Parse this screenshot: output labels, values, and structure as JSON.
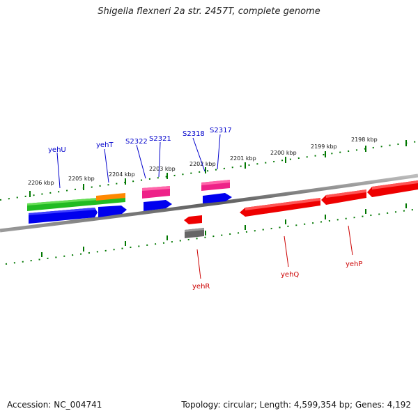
{
  "title": "Shigella flexneri 2a str. 2457T, complete genome",
  "footer": {
    "accession": "Accession: NC_004741",
    "summary": "Topology: circular; Length: 4,599,354 bp; Genes: 4,192"
  },
  "ticks": [
    "2206 kbp",
    "2205 kbp",
    "2204 kbp",
    "2203 kbp",
    "2202 kbp",
    "2201 kbp",
    "2200 kbp",
    "2199 kbp",
    "2198 kbp"
  ],
  "genes_forward": [
    "yehU",
    "yehT",
    "S2322",
    "S2321",
    "S2318",
    "S2317"
  ],
  "genes_reverse": [
    "yehR",
    "yehQ",
    "yehP"
  ],
  "colors": {
    "forward_label": "#0000cc",
    "reverse_label": "#cc0000",
    "backbone": "#777777",
    "ticks": "#007700",
    "cds_blue": "#0000ee",
    "cds_red": "#ee0000",
    "gene_green": "#22bb22",
    "gene_orange": "#ff8800",
    "gene_pink": "#ee2288",
    "gene_grey": "#666666"
  }
}
